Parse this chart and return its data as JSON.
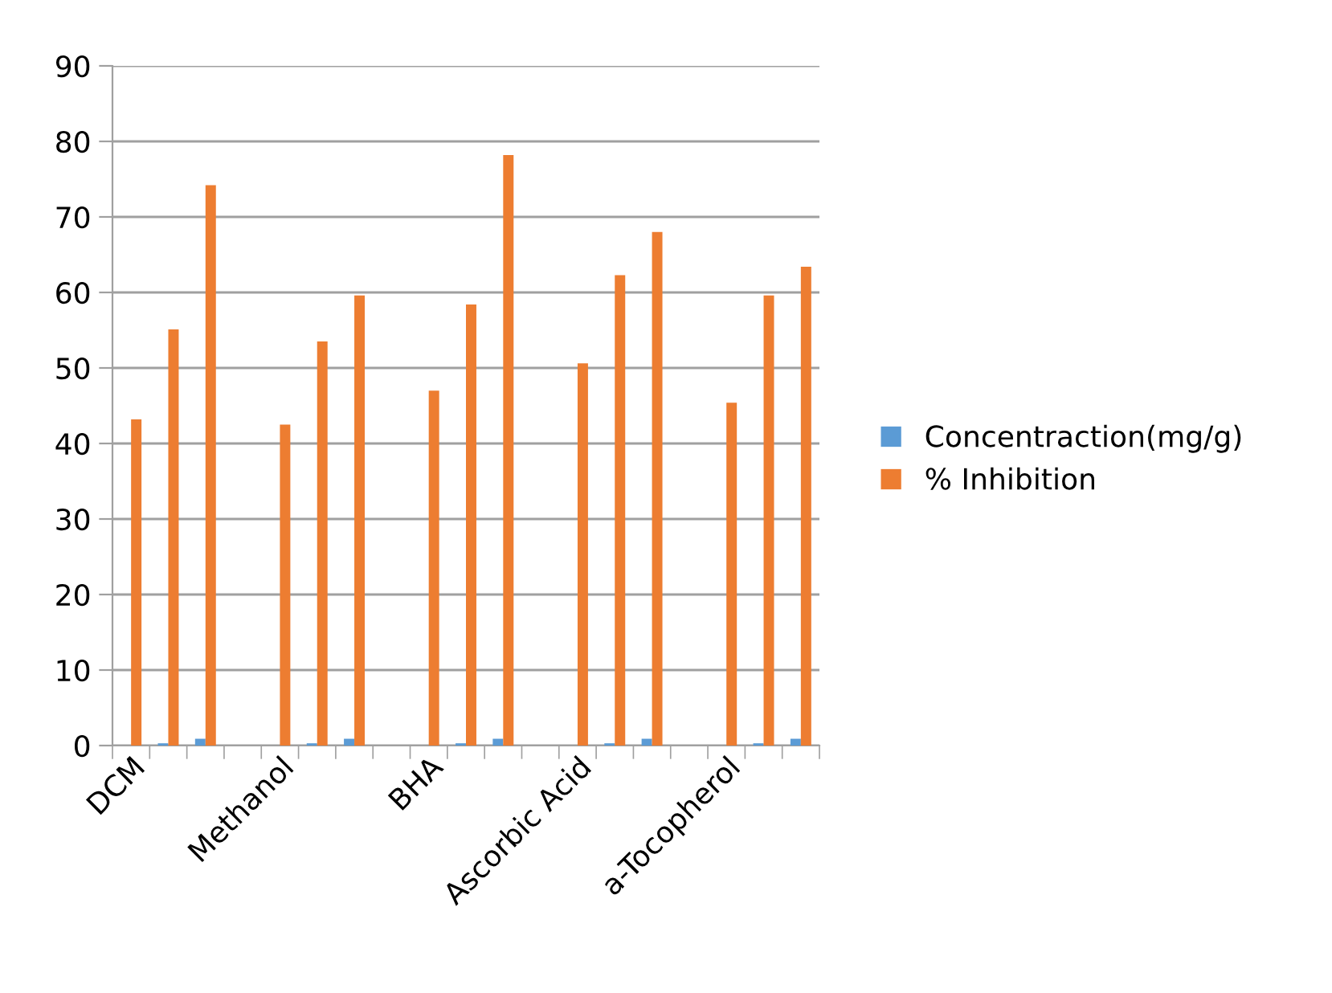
{
  "chart_data": {
    "type": "bar",
    "categories": [
      "DCM",
      null,
      null,
      null,
      "Methanol",
      null,
      null,
      null,
      "BHA",
      null,
      null,
      null,
      "Ascorbic Acid",
      null,
      null,
      null,
      "a-Tocopherol",
      null,
      null
    ],
    "series": [
      {
        "name": "Concentraction(mg/g)",
        "color": "#5b9bd5",
        "values": [
          0,
          0.3,
          0.9,
          null,
          0,
          0.3,
          0.9,
          null,
          0,
          0.3,
          0.9,
          null,
          0,
          0.3,
          0.9,
          null,
          0,
          0.3,
          0.9
        ]
      },
      {
        "name": "% Inhibition",
        "color": "#ed7d31",
        "values": [
          43.2,
          55.1,
          74.2,
          null,
          42.5,
          53.5,
          59.6,
          null,
          47.0,
          58.4,
          78.2,
          null,
          50.6,
          62.3,
          68.0,
          null,
          45.4,
          59.6,
          63.4
        ]
      }
    ],
    "ylim": [
      0,
      90
    ],
    "yticks": [
      0,
      10,
      20,
      30,
      40,
      50,
      60,
      70,
      80,
      90
    ],
    "grid": "y",
    "legend": "right"
  }
}
